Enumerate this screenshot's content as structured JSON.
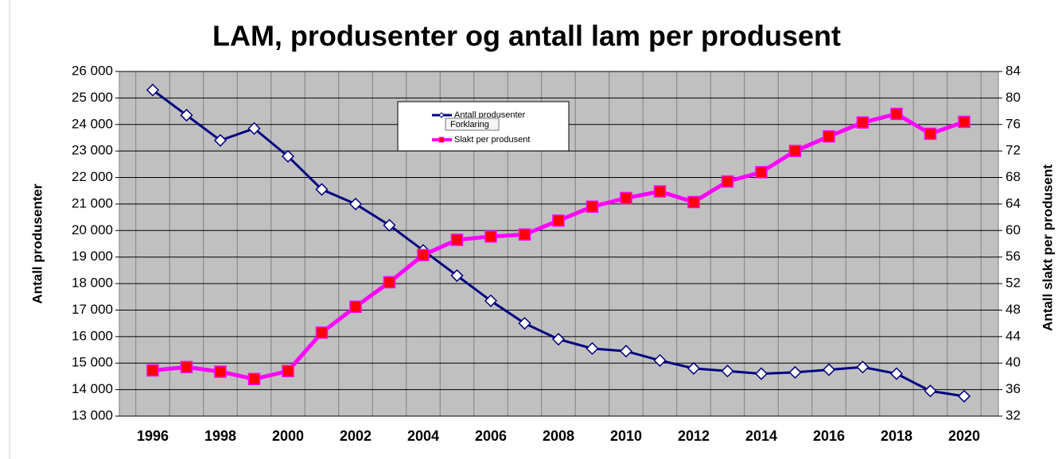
{
  "chart_data": {
    "type": "line",
    "title": "LAM, produsenter og antall lam per produsent",
    "y_label": "Antall produsenter",
    "y2_label": "Antall slakt per produsent",
    "tooltip": "Forklaring",
    "categories": [
      "1996",
      null,
      "1998",
      null,
      "2000",
      null,
      "2002",
      null,
      "2004",
      null,
      "2006",
      null,
      "2008",
      null,
      "2010",
      null,
      "2012",
      null,
      "2014",
      null,
      "2016",
      null,
      "2018",
      null,
      "2020"
    ],
    "series": [
      {
        "name": "Antall produsenter",
        "color": "#000080",
        "marker": "diamond",
        "marker_color": "#ffffff",
        "values": [
          25300,
          24350,
          23400,
          23850,
          22800,
          21550,
          21000,
          20200,
          19250,
          18300,
          17350,
          16500,
          15900,
          15550,
          15450,
          15100,
          14800,
          14700,
          14600,
          14650,
          14750,
          14850,
          14600,
          13950,
          13750
        ]
      },
      {
        "name": "Slakt per produsent",
        "color": "#ff00ff",
        "marker": "square",
        "marker_color": "#ff0000",
        "axis": "y2",
        "values": [
          38.9,
          39.4,
          38.7,
          37.6,
          38.8,
          44.6,
          48.5,
          52.2,
          56.3,
          58.6,
          59.1,
          59.4,
          61.5,
          63.6,
          64.9,
          65.9,
          64.3,
          67.4,
          68.8,
          72.0,
          74.2,
          76.3,
          77.6,
          74.6,
          76.4
        ]
      }
    ],
    "ylim": [
      13000,
      26000
    ],
    "yticks": [
      {
        "value": 13000,
        "label": "13 000"
      },
      {
        "value": 14000,
        "label": "14 000"
      },
      {
        "value": 15000,
        "label": "15 000"
      },
      {
        "value": 16000,
        "label": "16 000"
      },
      {
        "value": 17000,
        "label": "17 000"
      },
      {
        "value": 18000,
        "label": "18 000"
      },
      {
        "value": 19000,
        "label": "19 000"
      },
      {
        "value": 20000,
        "label": "20 000"
      },
      {
        "value": 21000,
        "label": "21 000"
      },
      {
        "value": 22000,
        "label": "22 000"
      },
      {
        "value": 23000,
        "label": "23 000"
      },
      {
        "value": 24000,
        "label": "24 000"
      },
      {
        "value": 25000,
        "label": "25 000"
      },
      {
        "value": 26000,
        "label": "26 000"
      }
    ],
    "y2lim": [
      32,
      84
    ],
    "y2ticks": [
      32,
      36,
      40,
      44,
      48,
      52,
      56,
      60,
      64,
      68,
      72,
      76,
      80,
      84
    ],
    "grid": true,
    "plot_color": "#c0c0c0"
  }
}
